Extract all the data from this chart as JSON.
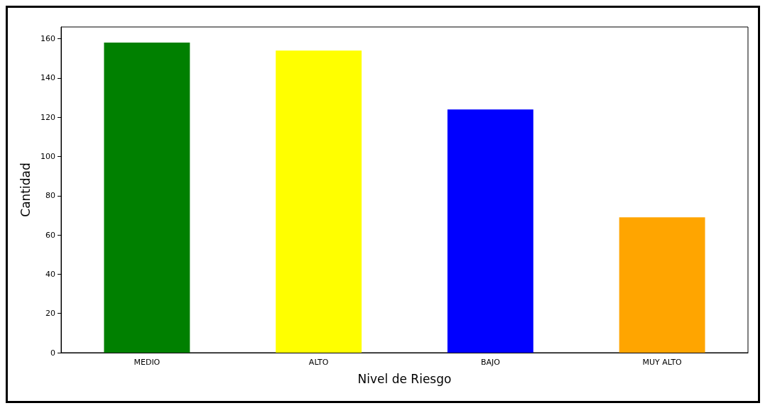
{
  "chart_data": {
    "type": "bar",
    "xlabel": "Nivel de Riesgo",
    "ylabel": "Cantidad",
    "categories": [
      "MEDIO",
      "ALTO",
      "BAJO",
      "MUY ALTO"
    ],
    "values": [
      158,
      154,
      124,
      69
    ],
    "colors": [
      "#008000",
      "#ffff00",
      "#0000ff",
      "#ffa500"
    ],
    "ylim": [
      0,
      166
    ],
    "yticks": [
      0,
      20,
      40,
      60,
      80,
      100,
      120,
      140,
      160
    ],
    "grid": false
  }
}
